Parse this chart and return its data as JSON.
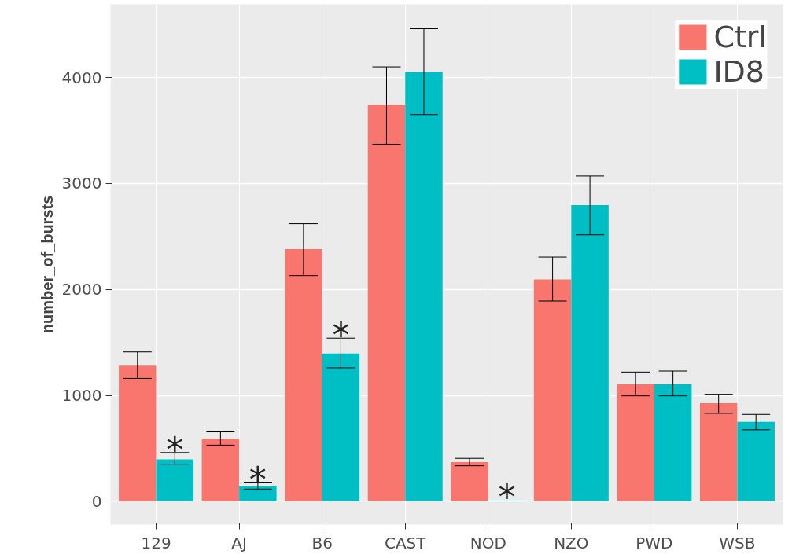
{
  "chart_data": {
    "type": "bar",
    "ylabel": "number_of_bursts",
    "categories": [
      "129",
      "AJ",
      "B6",
      "CAST",
      "NOD",
      "NZO",
      "PWD",
      "WSB"
    ],
    "series": [
      {
        "name": "Ctrl",
        "color": "#f8766d",
        "values": [
          1280,
          590,
          2380,
          3740,
          370,
          2095,
          1105,
          925
        ],
        "errors": [
          [
            1160,
            1410
          ],
          [
            530,
            655
          ],
          [
            2130,
            2620
          ],
          [
            3370,
            4100
          ],
          [
            335,
            405
          ],
          [
            1890,
            2305
          ],
          [
            995,
            1220
          ],
          [
            830,
            1010
          ]
        ]
      },
      {
        "name": "ID8",
        "color": "#00bfc4",
        "values": [
          395,
          145,
          1395,
          4050,
          5,
          2795,
          1105,
          750
        ],
        "errors": [
          [
            350,
            460
          ],
          [
            115,
            180
          ],
          [
            1260,
            1540
          ],
          [
            3650,
            4460
          ],
          null,
          [
            2515,
            3070
          ],
          [
            995,
            1230
          ],
          [
            675,
            820
          ]
        ]
      }
    ],
    "ylim": [
      -220,
      4690
    ],
    "yticks": [
      0,
      1000,
      2000,
      3000,
      4000
    ],
    "grid": true,
    "legend": "top right",
    "annotations": [
      {
        "text": "*",
        "x": "129",
        "y": 460
      },
      {
        "text": "*",
        "x": "AJ",
        "y": 180
      },
      {
        "text": "*",
        "x": "B6",
        "y": 1540
      },
      {
        "text": "*",
        "x": "NOD",
        "y": 10
      }
    ]
  }
}
